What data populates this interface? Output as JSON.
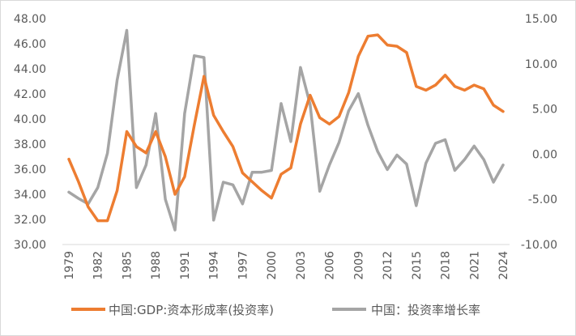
{
  "chart_data": {
    "type": "line",
    "x": [
      1979,
      1980,
      1981,
      1982,
      1983,
      1984,
      1985,
      1986,
      1987,
      1988,
      1989,
      1990,
      1991,
      1992,
      1993,
      1994,
      1995,
      1996,
      1997,
      1998,
      1999,
      2000,
      2001,
      2002,
      2003,
      2004,
      2005,
      2006,
      2007,
      2008,
      2009,
      2010,
      2011,
      2012,
      2013,
      2014,
      2015,
      2016,
      2017,
      2018,
      2019,
      2020,
      2021,
      2022,
      2023,
      2024
    ],
    "x_tick_labels": [
      "1979",
      "1982",
      "1985",
      "1988",
      "1991",
      "1994",
      "1997",
      "2000",
      "2003",
      "2006",
      "2009",
      "2012",
      "2015",
      "2018",
      "2021",
      "2024"
    ],
    "y_left": {
      "ylim": [
        30,
        48
      ],
      "ticks": [
        "30.00",
        "32.00",
        "34.00",
        "36.00",
        "38.00",
        "40.00",
        "42.00",
        "44.00",
        "46.00",
        "48.00"
      ]
    },
    "y_right": {
      "ylim": [
        -10,
        15
      ],
      "ticks": [
        "-10.00",
        "-5.00",
        "0.00",
        "5.00",
        "10.00",
        "15.00"
      ]
    },
    "series": [
      {
        "name": "中国:GDP:资本形成率(投资率)",
        "axis": "left",
        "color": "#ed7d31",
        "values": [
          36.8,
          35.0,
          33.0,
          31.9,
          31.9,
          34.3,
          39.0,
          37.8,
          37.3,
          39.0,
          37.0,
          34.0,
          35.4,
          39.5,
          43.4,
          40.3,
          39.0,
          37.8,
          35.7,
          35.0,
          34.3,
          33.7,
          35.6,
          36.1,
          39.6,
          41.9,
          40.1,
          39.6,
          40.2,
          42.1,
          45.0,
          46.6,
          46.7,
          45.9,
          45.8,
          45.3,
          42.6,
          42.3,
          42.7,
          43.5,
          42.6,
          42.3,
          42.7,
          42.4,
          41.1,
          40.6
        ]
      },
      {
        "name": "中国：投资率增长率",
        "axis": "right",
        "color": "#a5a5a5",
        "values": [
          -4.2,
          -4.9,
          -5.5,
          -3.7,
          0.1,
          8.2,
          13.7,
          -3.7,
          -1.2,
          4.5,
          -5.0,
          -8.4,
          4.5,
          10.9,
          10.7,
          -7.3,
          -3.1,
          -3.4,
          -5.5,
          -2.0,
          -2.0,
          -1.8,
          5.6,
          1.4,
          9.6,
          5.5,
          -4.1,
          -1.2,
          1.3,
          4.8,
          6.7,
          3.2,
          0.3,
          -1.7,
          -0.1,
          -1.1,
          -5.7,
          -1.0,
          1.2,
          1.6,
          -1.8,
          -0.6,
          0.9,
          -0.6,
          -3.1,
          -1.2
        ]
      }
    ],
    "legend": "bottom",
    "grid": false
  }
}
